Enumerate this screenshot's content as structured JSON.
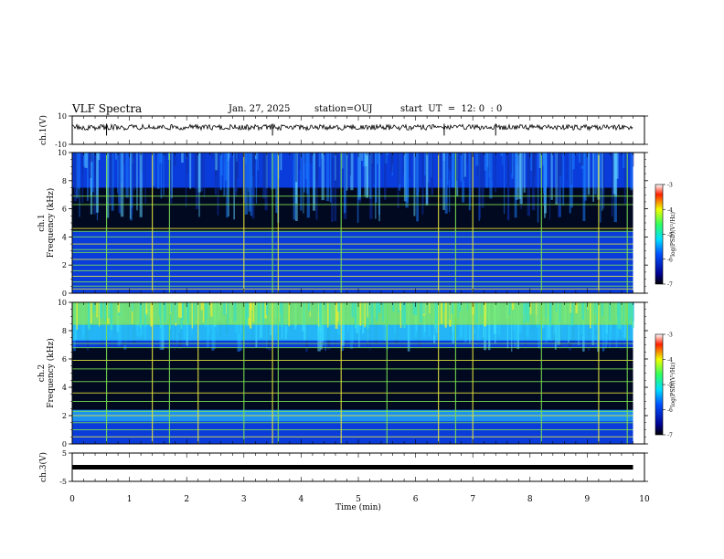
{
  "header": {
    "title": "VLF Spectra",
    "date": "Jan. 27, 2025",
    "station": "station=OUJ",
    "start": "start  UT  =  12: 0  : 0"
  },
  "chart_data": [
    {
      "type": "line",
      "panel": "ch1-waveform",
      "ylabel": "ch.1(V)",
      "ylim": [
        -10,
        10
      ],
      "yticks": [
        "10",
        "-10"
      ],
      "xlim": [
        0,
        10
      ],
      "baseline": 2
    },
    {
      "type": "heatmap",
      "panel": "ch1-spectrogram",
      "ylabel_line1": "ch.1",
      "ylabel_line2": "Frequency (kHz)",
      "ylim": [
        0,
        10
      ],
      "yticks": [
        "0",
        "2",
        "4",
        "6",
        "8",
        "10"
      ],
      "xlim": [
        0,
        10
      ],
      "data_end_min": 9.8,
      "colorbar": {
        "label": "log(PSD)(V²/Hz)",
        "range": [
          -7,
          -3
        ],
        "ticks": [
          "-3",
          "-4",
          "-5",
          "-6",
          "-7"
        ]
      },
      "lines_khz": [
        0.3,
        0.5,
        0.8,
        1.2,
        1.6,
        2.0,
        2.4,
        2.9,
        3.1,
        3.5,
        4.0,
        4.4,
        4.6,
        6.3,
        6.9
      ],
      "spikes_min": [
        0.6,
        1.4,
        1.7,
        3.0,
        3.5,
        3.6,
        4.7,
        6.4,
        6.7,
        7.0,
        8.2,
        9.2,
        9.7
      ]
    },
    {
      "type": "heatmap",
      "panel": "ch2-spectrogram",
      "ylabel_line1": "ch.2",
      "ylabel_line2": "Frequency (kHz)",
      "ylim": [
        0,
        10
      ],
      "yticks": [
        "0",
        "2",
        "4",
        "6",
        "8",
        "10"
      ],
      "xlim": [
        0,
        10
      ],
      "data_end_min": 9.8,
      "colorbar": {
        "label": "log(PSD)(V²/Hz)",
        "range": [
          -7,
          -3
        ],
        "ticks": [
          "-3",
          "-4",
          "-5",
          "-6",
          "-7"
        ]
      },
      "lines_khz": [
        0.5,
        1.0,
        1.5,
        2.0,
        2.3,
        3.0,
        3.6,
        4.4,
        5.3,
        5.9,
        6.8,
        7.1
      ],
      "spikes_min": [
        0.6,
        1.4,
        1.7,
        2.2,
        3.0,
        3.5,
        3.6,
        4.7,
        5.5,
        6.4,
        6.7,
        7.0,
        8.2,
        9.2,
        9.7
      ]
    },
    {
      "type": "line",
      "panel": "ch3-waveform",
      "ylabel": "ch.3(V)",
      "ylim": [
        -5,
        5
      ],
      "yticks": [
        "5",
        "-5"
      ],
      "xlim": [
        0,
        10
      ],
      "xlabel": "Time (min)",
      "xticks": [
        "0",
        "1",
        "2",
        "3",
        "4",
        "5",
        "6",
        "7",
        "8",
        "9",
        "10"
      ],
      "baseline": 0
    }
  ],
  "colors": {
    "spec_low": "#000000",
    "spec_mid": "#0a3cdc",
    "spec_high": "#2ee8ff",
    "line_green": "#7de24e",
    "line_yellow": "#e8e83a"
  }
}
